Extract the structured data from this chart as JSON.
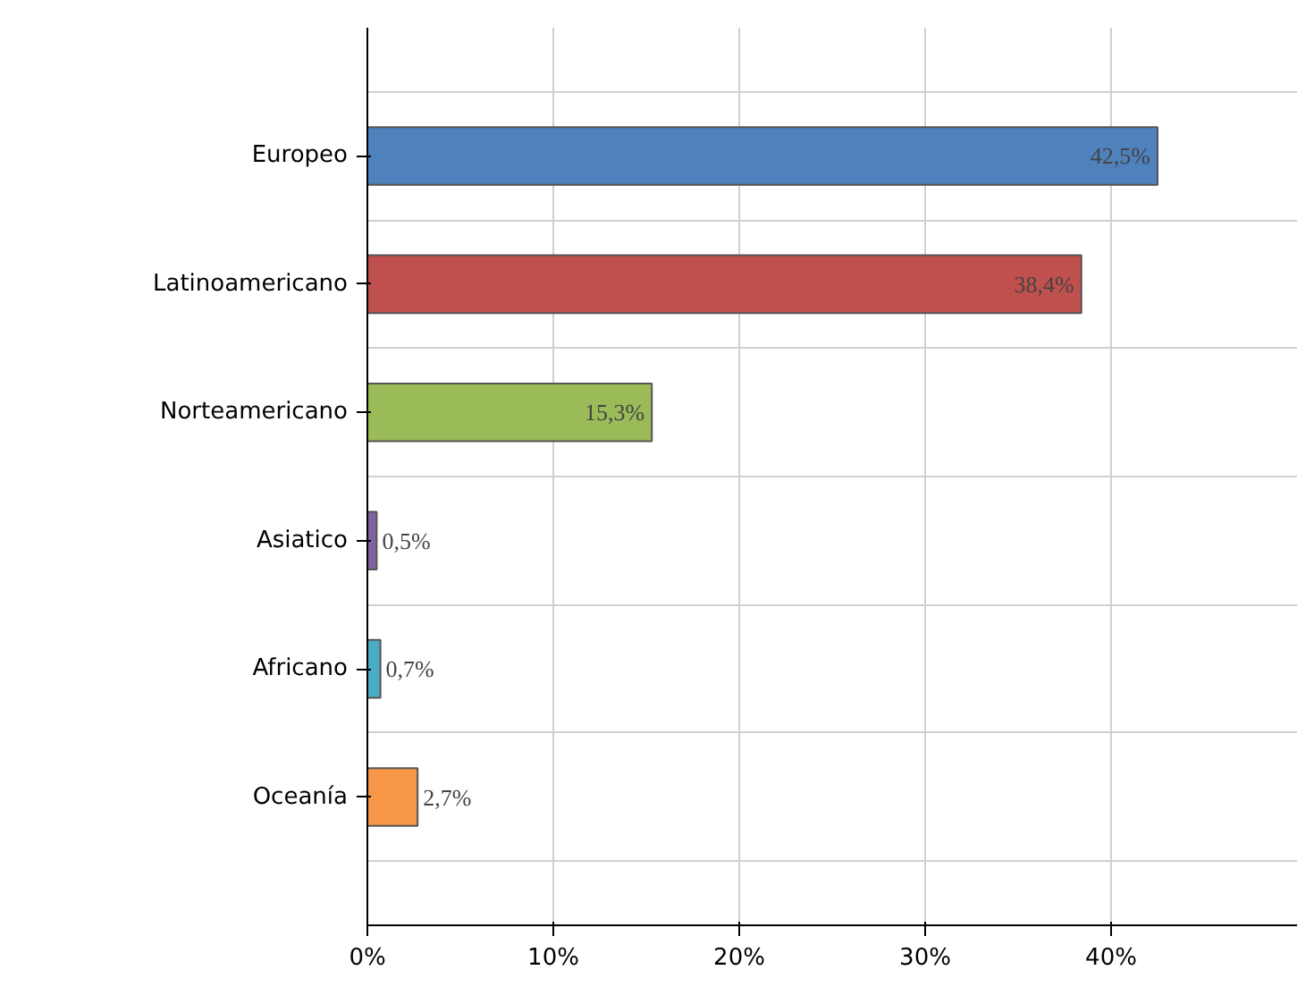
{
  "chart_data": {
    "type": "bar",
    "orientation": "horizontal",
    "categories": [
      "Europeo",
      "Latinoamericano",
      "Norteamericano",
      "Asiatico",
      "Africano",
      "Oceanía"
    ],
    "values": [
      42.5,
      38.4,
      15.3,
      0.5,
      0.7,
      2.7
    ],
    "colors": [
      "#4f81bd",
      "#c0504d",
      "#9bbb59",
      "#8064a2",
      "#4bacc6",
      "#f79646"
    ],
    "value_labels": [
      "42,5%",
      "38,4%",
      "15,3%",
      "0,5%",
      "0,7%",
      "2,7%"
    ],
    "xlim": [
      0,
      50
    ],
    "xticks": [
      {
        "value": 0,
        "label": "0%"
      },
      {
        "value": 10,
        "label": "10%"
      },
      {
        "value": 20,
        "label": "20%"
      },
      {
        "value": 30,
        "label": "30%"
      },
      {
        "value": 40,
        "label": "40%"
      }
    ],
    "grid": true
  }
}
